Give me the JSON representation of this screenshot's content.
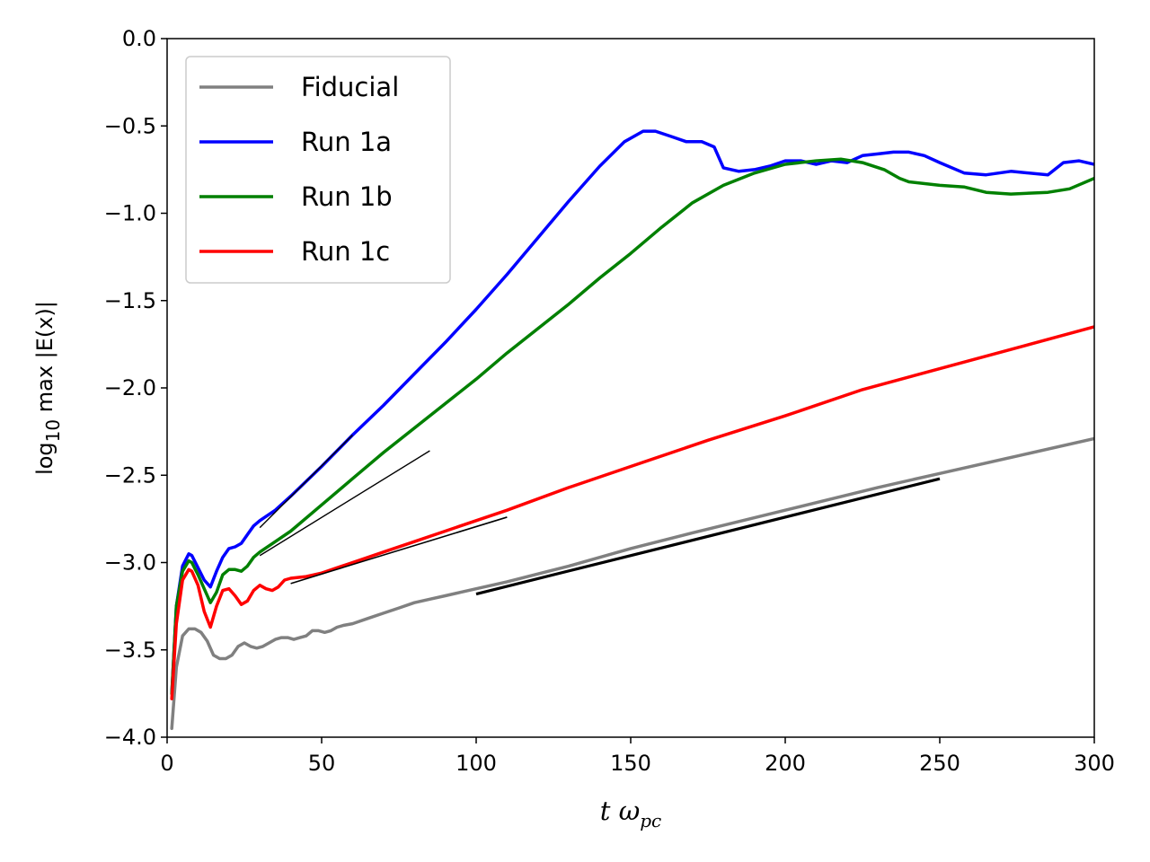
{
  "chart_data": {
    "type": "line",
    "xlabel": {
      "var": "t",
      "greek": "ω",
      "sub": "pc"
    },
    "ylabel": {
      "pre": "log",
      "sub": "10",
      "post": " max |E(x)|"
    },
    "xlim": [
      0,
      300
    ],
    "ylim": [
      -4.0,
      0.0
    ],
    "x_ticks": [
      0,
      50,
      100,
      150,
      200,
      250,
      300
    ],
    "y_ticks": [
      0.0,
      -0.5,
      -1.0,
      -1.5,
      -2.0,
      -2.5,
      -3.0,
      -3.5,
      -4.0
    ],
    "x_tick_labels": [
      "0",
      "50",
      "100",
      "150",
      "200",
      "250",
      "300"
    ],
    "y_tick_labels": [
      "0.0",
      "−0.5",
      "−1.0",
      "−1.5",
      "−2.0",
      "−2.5",
      "−3.0",
      "−3.5",
      "−4.0"
    ],
    "grid": false,
    "legend_position": "top-left",
    "series": [
      {
        "name": "Fiducial",
        "color": "#808080",
        "x": [
          1.5,
          3,
          5,
          7,
          9,
          11,
          13,
          15,
          17,
          19,
          21,
          23,
          25,
          27,
          29,
          31,
          33,
          35,
          37,
          39,
          41,
          43,
          45,
          47,
          49,
          51,
          53,
          55,
          57,
          60,
          65,
          70,
          75,
          80,
          85,
          90,
          95,
          100,
          110,
          130,
          150,
          170,
          200,
          230,
          250,
          275,
          300
        ],
        "y": [
          -3.95,
          -3.6,
          -3.42,
          -3.38,
          -3.38,
          -3.4,
          -3.45,
          -3.53,
          -3.55,
          -3.55,
          -3.53,
          -3.48,
          -3.46,
          -3.48,
          -3.49,
          -3.48,
          -3.46,
          -3.44,
          -3.43,
          -3.43,
          -3.44,
          -3.43,
          -3.42,
          -3.39,
          -3.39,
          -3.4,
          -3.39,
          -3.37,
          -3.36,
          -3.35,
          -3.32,
          -3.29,
          -3.26,
          -3.23,
          -3.21,
          -3.19,
          -3.17,
          -3.15,
          -3.11,
          -3.02,
          -2.92,
          -2.83,
          -2.7,
          -2.57,
          -2.49,
          -2.39,
          -2.29
        ]
      },
      {
        "name": "Run 1a",
        "color": "#0000ff",
        "x": [
          1.5,
          3,
          5,
          7,
          8,
          10,
          12,
          14,
          16,
          18,
          20,
          22,
          24,
          26,
          28,
          30,
          35,
          40,
          50,
          60,
          70,
          80,
          90,
          100,
          110,
          120,
          130,
          140,
          148,
          154,
          158,
          163,
          168,
          173,
          177,
          180,
          185,
          190,
          195,
          200,
          205,
          210,
          215,
          220,
          225,
          230,
          235,
          240,
          245,
          250,
          258,
          265,
          273,
          285,
          290,
          295,
          300
        ],
        "y": [
          -3.75,
          -3.25,
          -3.02,
          -2.95,
          -2.96,
          -3.03,
          -3.1,
          -3.14,
          -3.05,
          -2.97,
          -2.92,
          -2.91,
          -2.89,
          -2.84,
          -2.79,
          -2.76,
          -2.7,
          -2.62,
          -2.45,
          -2.27,
          -2.1,
          -1.92,
          -1.74,
          -1.55,
          -1.35,
          -1.14,
          -0.93,
          -0.73,
          -0.59,
          -0.53,
          -0.53,
          -0.56,
          -0.59,
          -0.59,
          -0.62,
          -0.74,
          -0.76,
          -0.75,
          -0.73,
          -0.7,
          -0.7,
          -0.72,
          -0.7,
          -0.71,
          -0.67,
          -0.66,
          -0.65,
          -0.65,
          -0.67,
          -0.71,
          -0.77,
          -0.78,
          -0.76,
          -0.78,
          -0.71,
          -0.7,
          -0.72
        ]
      },
      {
        "name": "Run 1b",
        "color": "#008000",
        "x": [
          1.5,
          3,
          5,
          7,
          8,
          10,
          12,
          14,
          16,
          18,
          20,
          22,
          24,
          26,
          28,
          30,
          35,
          40,
          50,
          60,
          70,
          80,
          90,
          100,
          110,
          120,
          130,
          140,
          150,
          160,
          170,
          180,
          190,
          200,
          210,
          218,
          225,
          232,
          237,
          240,
          250,
          258,
          265,
          273,
          285,
          292,
          300
        ],
        "y": [
          -3.75,
          -3.25,
          -3.05,
          -2.99,
          -3.0,
          -3.07,
          -3.15,
          -3.23,
          -3.17,
          -3.07,
          -3.04,
          -3.04,
          -3.05,
          -3.02,
          -2.97,
          -2.94,
          -2.88,
          -2.82,
          -2.67,
          -2.52,
          -2.37,
          -2.23,
          -2.09,
          -1.95,
          -1.8,
          -1.66,
          -1.52,
          -1.37,
          -1.23,
          -1.08,
          -0.94,
          -0.84,
          -0.77,
          -0.72,
          -0.7,
          -0.69,
          -0.71,
          -0.75,
          -0.8,
          -0.82,
          -0.84,
          -0.85,
          -0.88,
          -0.89,
          -0.88,
          -0.86,
          -0.8
        ]
      },
      {
        "name": "Run 1c",
        "color": "#ff0000",
        "x": [
          1.5,
          3,
          5,
          7,
          8,
          10,
          12,
          14,
          16,
          18,
          20,
          22,
          24,
          26,
          28,
          30,
          32,
          34,
          36,
          38,
          40,
          45,
          50,
          55,
          60,
          70,
          80,
          90,
          100,
          110,
          130,
          150,
          175,
          200,
          225,
          250,
          275,
          300
        ],
        "y": [
          -3.78,
          -3.35,
          -3.1,
          -3.04,
          -3.05,
          -3.13,
          -3.28,
          -3.37,
          -3.25,
          -3.16,
          -3.15,
          -3.19,
          -3.24,
          -3.22,
          -3.16,
          -3.13,
          -3.15,
          -3.16,
          -3.14,
          -3.1,
          -3.09,
          -3.08,
          -3.06,
          -3.03,
          -3.0,
          -2.94,
          -2.88,
          -2.82,
          -2.76,
          -2.7,
          -2.57,
          -2.45,
          -2.3,
          -2.16,
          -2.01,
          -1.89,
          -1.77,
          -1.65
        ]
      }
    ],
    "fit_lines": [
      {
        "color": "#000000",
        "width": 1.4,
        "x": [
          30,
          60
        ],
        "y": [
          -2.8,
          -2.27
        ]
      },
      {
        "color": "#000000",
        "width": 1.4,
        "x": [
          30,
          85
        ],
        "y": [
          -2.96,
          -2.36
        ]
      },
      {
        "color": "#000000",
        "width": 1.6,
        "x": [
          40,
          110
        ],
        "y": [
          -3.12,
          -2.74
        ]
      },
      {
        "color": "#000000",
        "width": 3.2,
        "x": [
          100,
          250
        ],
        "y": [
          -3.18,
          -2.52
        ]
      }
    ]
  }
}
